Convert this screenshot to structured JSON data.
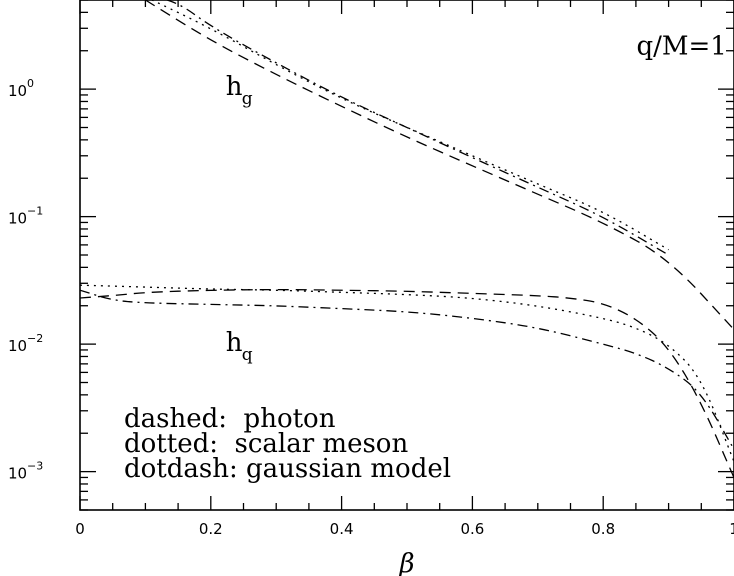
{
  "chart_data": {
    "type": "line",
    "title": "",
    "xlabel": "β",
    "ylabel": "",
    "xlim": [
      0,
      1
    ],
    "ylim": [
      0.0005,
      5
    ],
    "yscale": "log",
    "grid": false,
    "x_ticks": [
      {
        "value": 0,
        "label": "0"
      },
      {
        "value": 0.2,
        "label": "0.2"
      },
      {
        "value": 0.4,
        "label": "0.4"
      },
      {
        "value": 0.6,
        "label": "0.6"
      },
      {
        "value": 0.8,
        "label": "0.8"
      },
      {
        "value": 1,
        "label": "1"
      }
    ],
    "y_ticks": [
      {
        "value": 1,
        "base": "10",
        "exp": "0"
      },
      {
        "value": 0.1,
        "base": "10",
        "exp": "−1"
      },
      {
        "value": 0.01,
        "base": "10",
        "exp": "−2"
      },
      {
        "value": 0.001,
        "base": "10",
        "exp": "−3"
      }
    ],
    "annotations": [
      {
        "text": "q/M=1",
        "x": 0.92,
        "y": 2.2
      },
      {
        "text": "h",
        "sub": "g",
        "x": 0.235,
        "y": 0.9
      },
      {
        "text": "h",
        "sub": "q",
        "x": 0.235,
        "y": 0.0088
      }
    ],
    "legend_lines": [
      "dashed:  photon",
      "dotted:  scalar meson",
      "dotdash: gaussian model"
    ],
    "series": [
      {
        "group": "h_g",
        "style": "dashed",
        "x": [
          0.1,
          0.2,
          0.3,
          0.4,
          0.5,
          0.6,
          0.7,
          0.8,
          0.9,
          1.0
        ],
        "y": [
          5.0,
          2.4,
          1.3,
          0.73,
          0.42,
          0.25,
          0.15,
          0.09,
          0.047,
          0.013
        ]
      },
      {
        "group": "h_g",
        "style": "dotted",
        "x": [
          0.1,
          0.2,
          0.3,
          0.4,
          0.5,
          0.6,
          0.7,
          0.8,
          0.9
        ],
        "y": [
          5.3,
          3.0,
          1.55,
          0.84,
          0.5,
          0.3,
          0.18,
          0.11,
          0.055
        ]
      },
      {
        "group": "h_g",
        "style": "dotdash",
        "x": [
          0.1,
          0.15,
          0.2,
          0.3,
          0.4,
          0.5,
          0.6,
          0.7,
          0.8,
          0.9
        ],
        "y": [
          5.5,
          4.8,
          3.1,
          1.6,
          0.86,
          0.5,
          0.29,
          0.17,
          0.1,
          0.05
        ]
      },
      {
        "group": "h_q",
        "style": "dashed",
        "x": [
          0,
          0.05,
          0.1,
          0.2,
          0.3,
          0.4,
          0.5,
          0.6,
          0.7,
          0.75,
          0.8,
          0.85,
          0.9,
          0.95,
          1.0
        ],
        "y": [
          0.023,
          0.024,
          0.0255,
          0.0265,
          0.0268,
          0.0265,
          0.026,
          0.025,
          0.024,
          0.023,
          0.021,
          0.016,
          0.0095,
          0.0035,
          0.0009
        ]
      },
      {
        "group": "h_q",
        "style": "dotted",
        "x": [
          0,
          0.1,
          0.2,
          0.3,
          0.4,
          0.5,
          0.6,
          0.7,
          0.8,
          0.85,
          0.9,
          0.95,
          1.0
        ],
        "y": [
          0.029,
          0.028,
          0.027,
          0.0265,
          0.0255,
          0.0245,
          0.023,
          0.02,
          0.016,
          0.0135,
          0.01,
          0.0055,
          0.0012
        ]
      },
      {
        "group": "h_q",
        "style": "dotdash",
        "x": [
          0,
          0.05,
          0.1,
          0.2,
          0.3,
          0.4,
          0.5,
          0.6,
          0.7,
          0.8,
          0.85,
          0.9,
          0.95,
          1.0
        ],
        "y": [
          0.0265,
          0.022,
          0.021,
          0.0205,
          0.02,
          0.019,
          0.018,
          0.016,
          0.0135,
          0.01,
          0.0085,
          0.0065,
          0.0042,
          0.0015
        ]
      }
    ]
  }
}
